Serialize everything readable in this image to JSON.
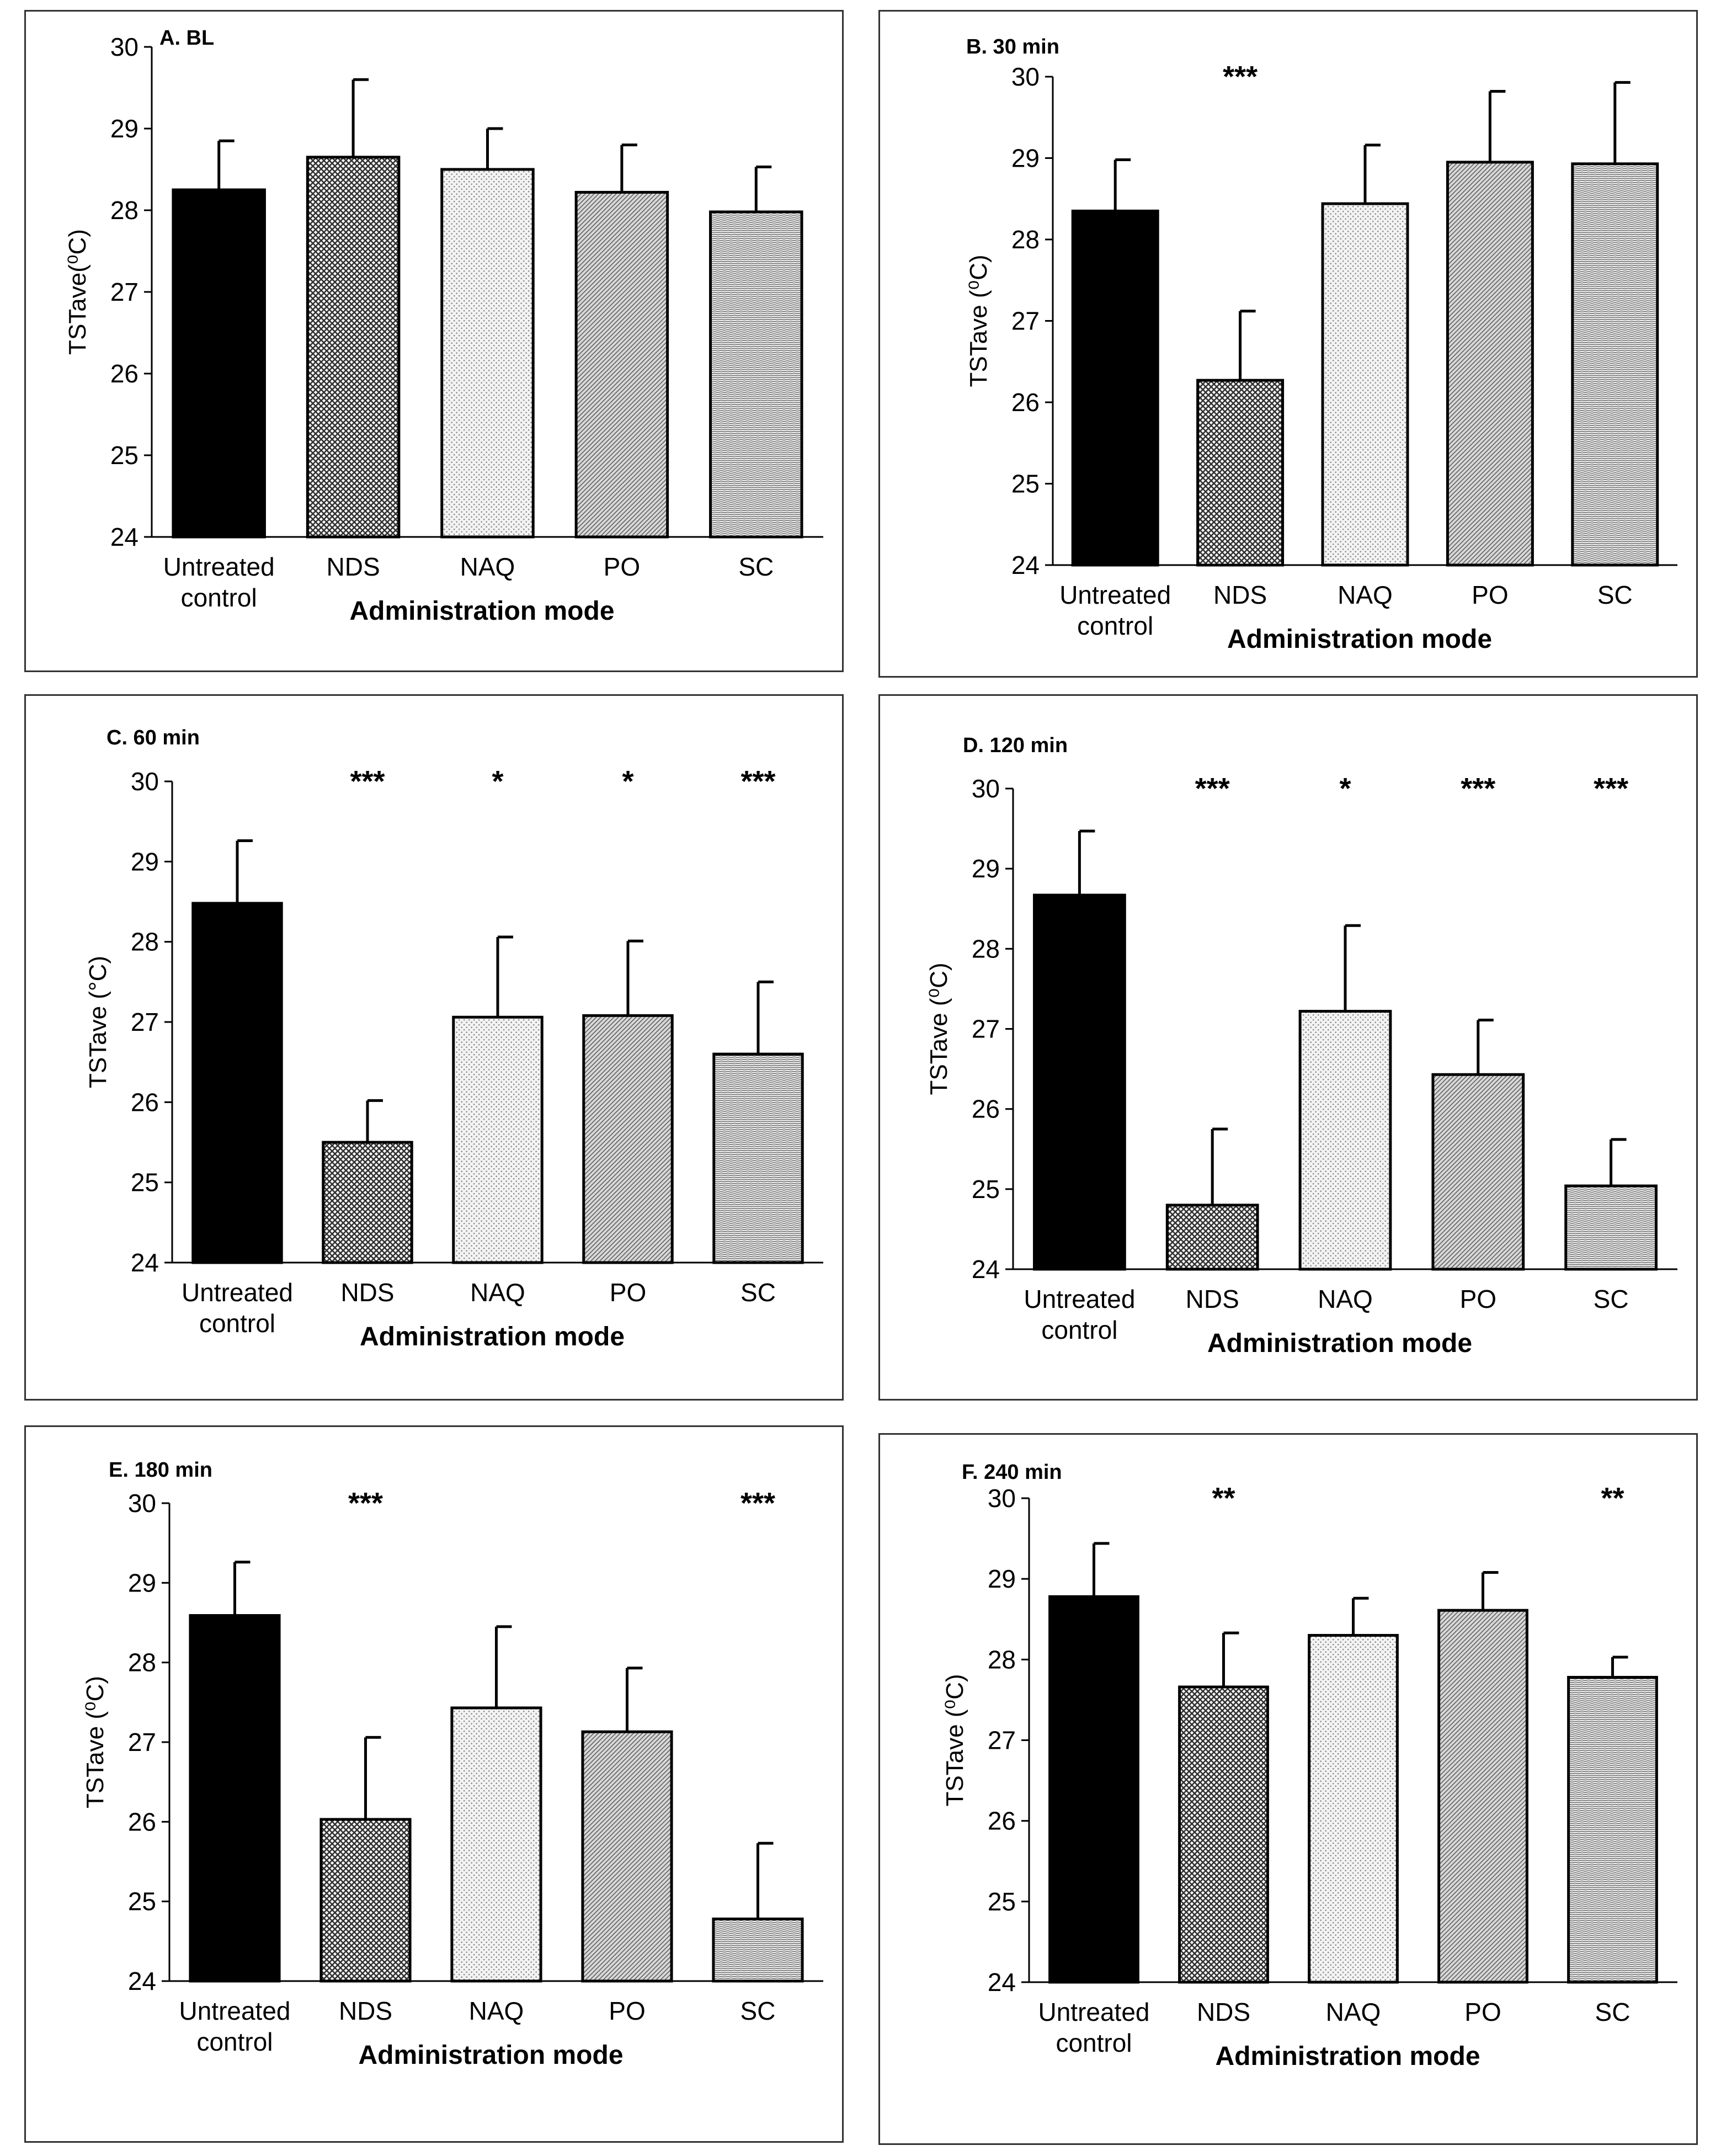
{
  "colors": {
    "border": "#333333",
    "bar_stroke": "#000000",
    "axis": "#000000"
  },
  "chart_data": [
    {
      "type": "bar",
      "title": "A. BL",
      "categories": [
        "Untreated|control",
        "NDS",
        "NAQ",
        "PO",
        "SC"
      ],
      "values": [
        28.25,
        28.65,
        28.5,
        28.22,
        27.98
      ],
      "errors": [
        0.6,
        0.95,
        0.5,
        0.58,
        0.55
      ],
      "significance": [
        "",
        "",
        "",
        "",
        ""
      ],
      "patterns": [
        "solid",
        "dense",
        "dots",
        "diag",
        "horiz"
      ],
      "xlabel": "Administration mode",
      "ylabel": "TSTave(⁰C)",
      "ylim": [
        24,
        30
      ],
      "yticks": [
        "24",
        "25",
        "26",
        "27",
        "28",
        "29",
        "30"
      ]
    },
    {
      "type": "bar",
      "title": "B. 30 min",
      "categories": [
        "Untreated|control",
        "NDS",
        "NAQ",
        "PO",
        "SC"
      ],
      "values": [
        28.35,
        26.27,
        28.44,
        28.95,
        28.93
      ],
      "errors": [
        0.63,
        0.85,
        0.72,
        0.87,
        1.0
      ],
      "significance": [
        "",
        "***",
        "",
        "",
        ""
      ],
      "patterns": [
        "solid",
        "dense",
        "dots",
        "diag",
        "horiz"
      ],
      "xlabel": "Administration mode",
      "ylabel": "TSTave (⁰C)",
      "ylim": [
        24,
        30
      ],
      "yticks": [
        "24",
        "25",
        "26",
        "27",
        "28",
        "29",
        "30"
      ]
    },
    {
      "type": "bar",
      "title": "C. 60 min",
      "categories": [
        "Untreated|control",
        "NDS",
        "NAQ",
        "PO",
        "SC"
      ],
      "values": [
        28.48,
        25.5,
        27.06,
        27.08,
        26.6
      ],
      "errors": [
        0.78,
        0.52,
        1.0,
        0.93,
        0.9
      ],
      "significance": [
        "",
        "***",
        "*",
        "*",
        "***"
      ],
      "patterns": [
        "solid",
        "dense",
        "dots",
        "diag",
        "horiz"
      ],
      "xlabel": "Administration mode",
      "ylabel": "TSTave (°C)",
      "ylim": [
        24,
        30
      ],
      "yticks": [
        "24",
        "25",
        "26",
        "27",
        "28",
        "29",
        "30"
      ]
    },
    {
      "type": "bar",
      "title": "D. 120 min",
      "categories": [
        "Untreated|control",
        "NDS",
        "NAQ",
        "PO",
        "SC"
      ],
      "values": [
        28.67,
        24.8,
        27.22,
        26.43,
        25.04
      ],
      "errors": [
        0.8,
        0.95,
        1.07,
        0.68,
        0.58
      ],
      "significance": [
        "",
        "***",
        "*",
        "***",
        "***"
      ],
      "patterns": [
        "solid",
        "dense",
        "dots",
        "diag",
        "horiz"
      ],
      "xlabel": "Administration mode",
      "ylabel": "TSTave (⁰C)",
      "ylim": [
        24,
        30
      ],
      "yticks": [
        "24",
        "25",
        "26",
        "27",
        "28",
        "29",
        "30"
      ]
    },
    {
      "type": "bar",
      "title": "E. 180 min",
      "categories": [
        "Untreated|control",
        "NDS",
        "NAQ",
        "PO",
        "SC"
      ],
      "values": [
        28.59,
        26.03,
        27.43,
        27.13,
        24.78
      ],
      "errors": [
        0.67,
        1.03,
        1.02,
        0.8,
        0.95
      ],
      "significance": [
        "",
        "***",
        "",
        "",
        "***"
      ],
      "patterns": [
        "solid",
        "dense",
        "dots",
        "diag",
        "horiz"
      ],
      "xlabel": "Administration mode",
      "ylabel": "TSTave (⁰C)",
      "ylim": [
        24,
        30
      ],
      "yticks": [
        "24",
        "25",
        "26",
        "27",
        "28",
        "29",
        "30"
      ]
    },
    {
      "type": "bar",
      "title": "F.  240 min",
      "categories": [
        "Untreated|control",
        "NDS",
        "NAQ",
        "PO",
        "SC"
      ],
      "values": [
        28.78,
        27.66,
        28.3,
        28.61,
        27.78
      ],
      "errors": [
        0.66,
        0.67,
        0.46,
        0.47,
        0.25
      ],
      "significance": [
        "",
        "**",
        "",
        "",
        "**"
      ],
      "patterns": [
        "solid",
        "dense",
        "dots",
        "diag",
        "horiz"
      ],
      "xlabel": "Administration mode",
      "ylabel": "TSTave (⁰C)",
      "ylim": [
        24,
        30
      ],
      "yticks": [
        "24",
        "25",
        "26",
        "27",
        "28",
        "29",
        "30"
      ]
    }
  ]
}
